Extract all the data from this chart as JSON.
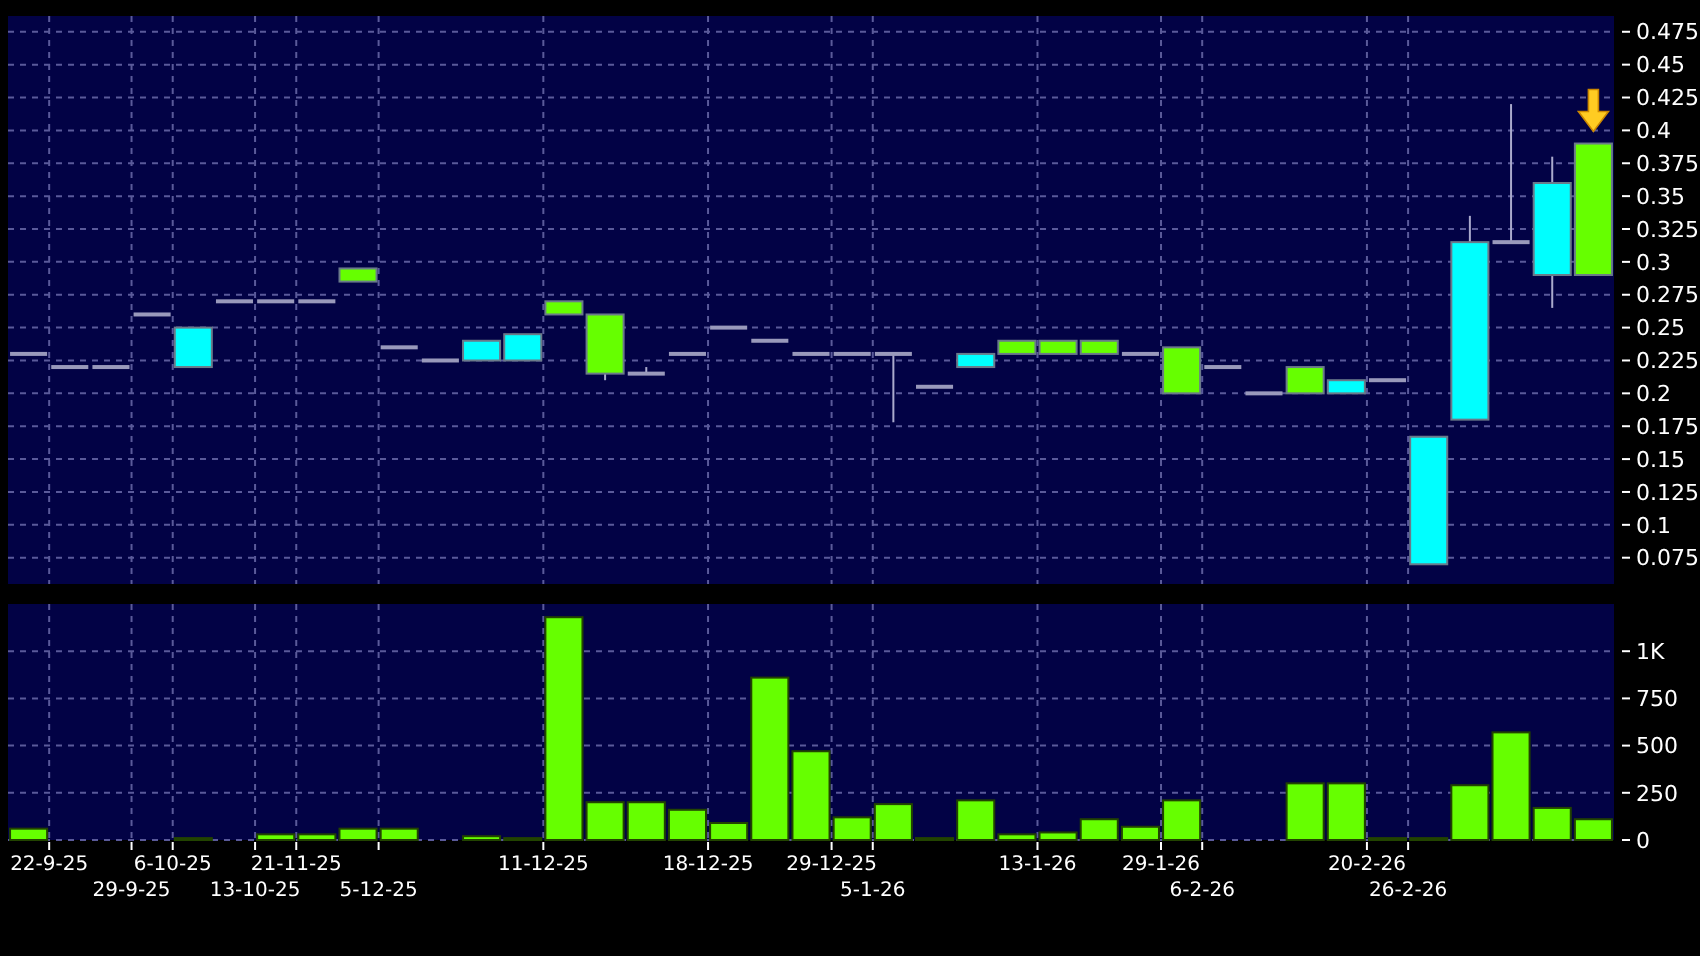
{
  "chart_data": [
    {
      "type": "candlestick",
      "categories": [
        null,
        null,
        null,
        null,
        null,
        null,
        null,
        null,
        null,
        null,
        null,
        null,
        null,
        null,
        null,
        null,
        null,
        null,
        null,
        null,
        null,
        null,
        null,
        null,
        null,
        null,
        null,
        null,
        null,
        null,
        null,
        null,
        null,
        null,
        null,
        null,
        null,
        null,
        null
      ],
      "ohlc": [
        [
          0.23,
          0.23,
          0.23,
          0.23
        ],
        [
          0.22,
          0.22,
          0.22,
          0.22
        ],
        [
          0.22,
          0.22,
          0.22,
          0.22
        ],
        [
          0.26,
          0.26,
          0.26,
          0.26
        ],
        [
          0.22,
          0.25,
          0.22,
          0.25
        ],
        [
          0.27,
          0.27,
          0.27,
          0.27
        ],
        [
          0.27,
          0.27,
          0.27,
          0.27
        ],
        [
          0.27,
          0.27,
          0.27,
          0.27
        ],
        [
          0.295,
          0.295,
          0.285,
          0.285
        ],
        [
          0.235,
          0.235,
          0.235,
          0.235
        ],
        [
          0.225,
          0.225,
          0.225,
          0.225
        ],
        [
          0.225,
          0.24,
          0.225,
          0.24
        ],
        [
          0.225,
          0.245,
          0.225,
          0.245
        ],
        [
          0.27,
          0.27,
          0.26,
          0.26
        ],
        [
          0.26,
          0.26,
          0.21,
          0.215
        ],
        [
          0.215,
          0.22,
          0.215,
          0.215
        ],
        [
          0.23,
          0.23,
          0.23,
          0.23
        ],
        [
          0.25,
          0.25,
          0.25,
          0.25
        ],
        [
          0.24,
          0.24,
          0.24,
          0.24
        ],
        [
          0.23,
          0.23,
          0.23,
          0.23
        ],
        [
          0.23,
          0.23,
          0.23,
          0.23
        ],
        [
          0.23,
          0.23,
          0.178,
          0.23
        ],
        [
          0.205,
          0.205,
          0.205,
          0.205
        ],
        [
          0.22,
          0.23,
          0.22,
          0.23
        ],
        [
          0.24,
          0.24,
          0.23,
          0.23
        ],
        [
          0.24,
          0.24,
          0.23,
          0.23
        ],
        [
          0.24,
          0.24,
          0.23,
          0.23
        ],
        [
          0.23,
          0.23,
          0.23,
          0.23
        ],
        [
          0.235,
          0.235,
          0.2,
          0.2
        ],
        [
          0.22,
          0.22,
          0.22,
          0.22
        ],
        [
          0.2,
          0.2,
          0.2,
          0.2
        ],
        [
          0.22,
          0.22,
          0.2,
          0.2
        ],
        [
          0.2,
          0.21,
          0.2,
          0.21
        ],
        [
          0.21,
          0.21,
          0.21,
          0.21
        ],
        [
          0.07,
          0.167,
          0.07,
          0.167
        ],
        [
          0.18,
          0.335,
          0.18,
          0.315
        ],
        [
          0.315,
          0.42,
          0.315,
          0.315
        ],
        [
          0.29,
          0.38,
          0.265,
          0.36
        ],
        [
          0.39,
          0.39,
          0.29,
          0.29
        ]
      ],
      "colors": [
        "#9999bb",
        "#9999bb",
        "#9999bb",
        "#9999bb",
        "#00ffff",
        "#9999bb",
        "#9999bb",
        "#9999bb",
        "#66ff00",
        "#9999bb",
        "#9999bb",
        "#00ffff",
        "#00ffff",
        "#66ff00",
        "#66ff00",
        "#9999bb",
        "#9999bb",
        "#9999bb",
        "#9999bb",
        "#9999bb",
        "#9999bb",
        "#9999bb",
        "#9999bb",
        "#00ffff",
        "#66ff00",
        "#66ff00",
        "#66ff00",
        "#9999bb",
        "#66ff00",
        "#9999bb",
        "#9999bb",
        "#66ff00",
        "#00ffff",
        "#9999bb",
        "#00ffff",
        "#00ffff",
        "#9999bb",
        "#00ffff",
        "#66ff00"
      ],
      "ylim": [
        0.055,
        0.487
      ],
      "yticks": [
        0.075,
        0.1,
        0.125,
        0.15,
        0.175,
        0.2,
        0.225,
        0.25,
        0.275,
        0.3,
        0.325,
        0.35,
        0.375,
        0.4,
        0.425,
        0.45,
        0.475
      ],
      "grid": true,
      "tick_labels": "y"
    },
    {
      "type": "bar",
      "categories": [
        null,
        "22-9-25",
        null,
        "29-9-25",
        "6-10-25",
        null,
        "13-10-25",
        "21-11-25",
        null,
        "5-12-25",
        null,
        null,
        null,
        "11-12-25",
        null,
        null,
        null,
        "18-12-25",
        null,
        null,
        "29-12-25",
        "5-1-26",
        null,
        null,
        null,
        "13-1-26",
        null,
        null,
        "29-1-26",
        "6-2-26",
        null,
        null,
        null,
        "20-2-26",
        "26-2-26",
        null,
        null,
        null,
        null
      ],
      "values": [
        60,
        0,
        0,
        0,
        10,
        0,
        30,
        30,
        60,
        60,
        0,
        20,
        10,
        1180,
        200,
        200,
        160,
        90,
        860,
        470,
        120,
        190,
        10,
        210,
        30,
        40,
        110,
        70,
        210,
        0,
        0,
        300,
        300,
        10,
        10,
        290,
        570,
        170,
        110
      ],
      "color": "#66ff00",
      "ylim": [
        0,
        1250
      ],
      "yticks": [
        0,
        250,
        500,
        750,
        {
          "value": 1000,
          "label": "1K"
        }
      ],
      "grid": true
    }
  ]
}
